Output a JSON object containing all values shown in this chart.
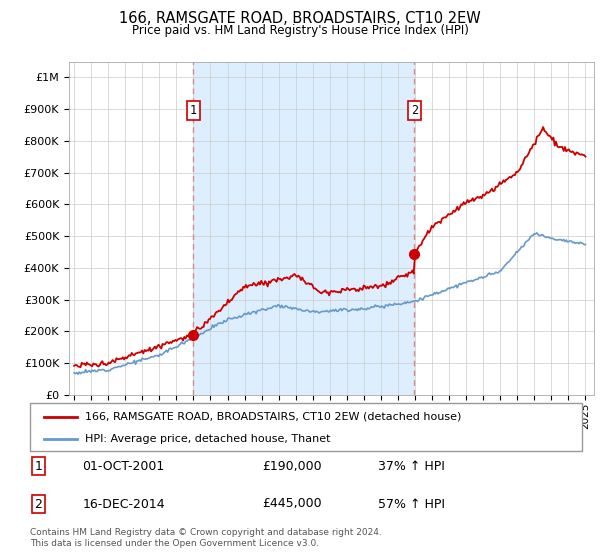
{
  "title": "166, RAMSGATE ROAD, BROADSTAIRS, CT10 2EW",
  "subtitle": "Price paid vs. HM Land Registry's House Price Index (HPI)",
  "legend_line1": "166, RAMSGATE ROAD, BROADSTAIRS, CT10 2EW (detached house)",
  "legend_line2": "HPI: Average price, detached house, Thanet",
  "annotation1_label": "1",
  "annotation1_date": "01-OCT-2001",
  "annotation1_price": "£190,000",
  "annotation1_hpi": "37% ↑ HPI",
  "annotation2_label": "2",
  "annotation2_date": "16-DEC-2014",
  "annotation2_price": "£445,000",
  "annotation2_hpi": "57% ↑ HPI",
  "footer": "Contains HM Land Registry data © Crown copyright and database right 2024.\nThis data is licensed under the Open Government Licence v3.0.",
  "ylim_max": 1050000,
  "sale1_year": 2002.0,
  "sale1_price": 190000,
  "sale2_year": 2014.96,
  "sale2_price": 445000,
  "red_color": "#cc0000",
  "blue_color": "#6699cc",
  "shade_color": "#ddeeff",
  "marker_color": "#cc0000",
  "vline_color": "#dd8888",
  "background_color": "#ffffff",
  "grid_color": "#cccccc"
}
